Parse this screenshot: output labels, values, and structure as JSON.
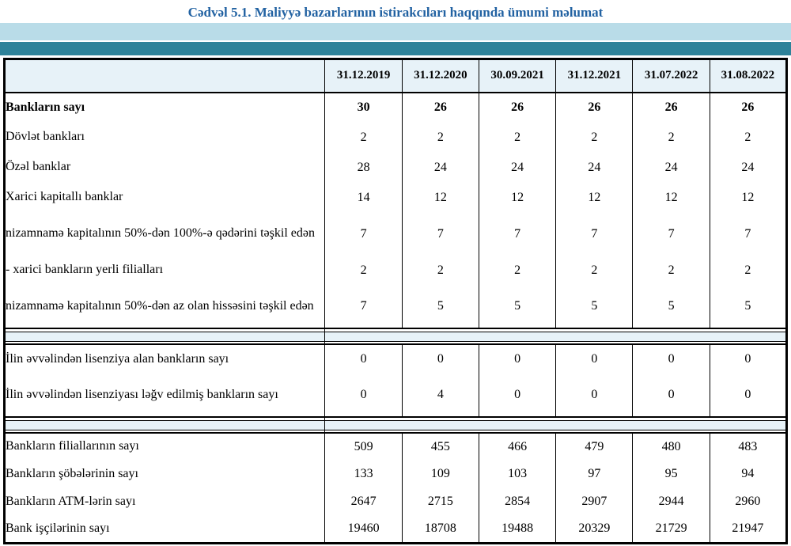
{
  "title": "Cədvəl 5.1. Maliyyə bazarlarının istirakcıları haqqında ümumi məlumat",
  "colors": {
    "title_blue": "#2262A2",
    "band_light": "#B9DCE8",
    "band_teal": "#2E8299",
    "header_bg": "#E7F2F8"
  },
  "table": {
    "columns": [
      "31.12.2019",
      "31.12.2020",
      "30.09.2021",
      "31.12.2021",
      "31.07.2022",
      "31.08.2022"
    ],
    "sections": [
      {
        "rows": [
          {
            "label": "Bankların sayı",
            "indent": 1,
            "bold": true,
            "two_line": false,
            "values": [
              "30",
              "26",
              "26",
              "26",
              "26",
              "26"
            ]
          },
          {
            "label": "Dövlət bankları",
            "indent": 2,
            "bold": false,
            "two_line": false,
            "values": [
              "2",
              "2",
              "2",
              "2",
              "2",
              "2"
            ]
          },
          {
            "label": "Özəl banklar",
            "indent": 2,
            "bold": false,
            "two_line": false,
            "values": [
              "28",
              "24",
              "24",
              "24",
              "24",
              "24"
            ]
          },
          {
            "label": "Xarici kapitallı banklar",
            "indent": 2,
            "bold": false,
            "two_line": false,
            "values": [
              "14",
              "12",
              "12",
              "12",
              "12",
              "12"
            ]
          },
          {
            "label": "nizamnamə kapitalının 50%-dən 100%-ə qədərini təşkil edən",
            "indent": 3,
            "bold": false,
            "two_line": true,
            "values": [
              "7",
              "7",
              "7",
              "7",
              "7",
              "7"
            ]
          },
          {
            "label": "-  xarici bankların yerli filialları",
            "indent": 3,
            "bold": false,
            "two_line": false,
            "values": [
              "2",
              "2",
              "2",
              "2",
              "2",
              "2"
            ]
          },
          {
            "label": "nizamnamə kapitalının 50%-dən az olan hissəsini  təşkil edən",
            "indent": 3,
            "bold": false,
            "two_line": true,
            "values": [
              "7",
              "5",
              "5",
              "5",
              "5",
              "5"
            ]
          }
        ]
      },
      {
        "rows": [
          {
            "label": "İlin əvvəlindən lisenziya alan bankların sayı",
            "indent": 2,
            "bold": false,
            "two_line": false,
            "values": [
              "0",
              "0",
              "0",
              "0",
              "0",
              "0"
            ]
          },
          {
            "label": "İlin əvvəlindən lisenziyası ləğv edilmiş bankların sayı",
            "indent": 2,
            "bold": false,
            "two_line": true,
            "values": [
              "0",
              "4",
              "0",
              "0",
              "0",
              "0"
            ]
          }
        ]
      },
      {
        "rows": [
          {
            "label": "Bankların filiallarının sayı",
            "indent": 2,
            "bold": false,
            "two_line": false,
            "short": true,
            "values": [
              "509",
              "455",
              "466",
              "479",
              "480",
              "483"
            ]
          },
          {
            "label": "Bankların şöbələrinin sayı",
            "indent": 2,
            "bold": false,
            "two_line": false,
            "short": true,
            "values": [
              "133",
              "109",
              "103",
              "97",
              "95",
              "94"
            ]
          },
          {
            "label": "Bankların ATM-lərin sayı",
            "indent": 2,
            "bold": false,
            "two_line": false,
            "short": true,
            "values": [
              "2647",
              "2715",
              "2854",
              "2907",
              "2944",
              "2960"
            ]
          },
          {
            "label": "Bank işçilərinin sayı",
            "indent": 2,
            "bold": false,
            "two_line": false,
            "short": true,
            "values": [
              "19460",
              "18708",
              "19488",
              "20329",
              "21729",
              "21947"
            ]
          }
        ]
      }
    ]
  }
}
